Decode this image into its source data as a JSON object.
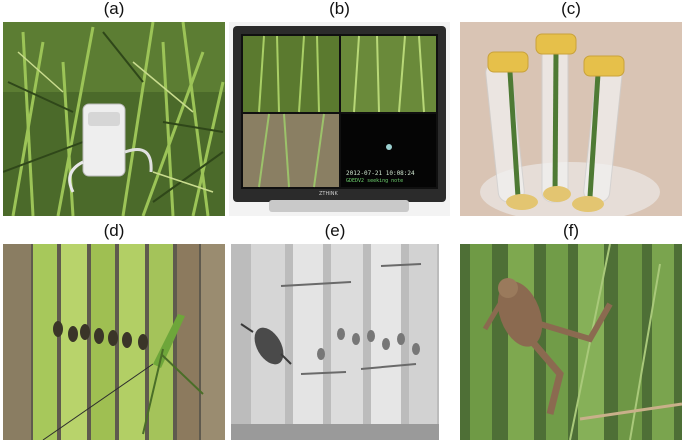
{
  "panels": [
    {
      "label": "(a)",
      "content": "camera-in-rice-field"
    },
    {
      "label": "(b)",
      "content": "monitor-four-view"
    },
    {
      "label": "(c)",
      "content": "stems-in-tubes"
    },
    {
      "label": "(d)",
      "content": "planthoppers-and-grasshopper"
    },
    {
      "label": "(e)",
      "content": "infrared-beetle-view"
    },
    {
      "label": "(f)",
      "content": "frog-on-stems"
    }
  ],
  "monitor": {
    "timestamp": "2012-07-21  10:08:24",
    "subline": "GDEDV2 seeking note",
    "brand": "ZTHINK"
  },
  "colors": {
    "leaf_dark": "#3d5a22",
    "leaf_light": "#8fb84a",
    "stem": "#7ea83a",
    "ir_bg": "#bcbcbc",
    "cap_yellow": "#e6c04a"
  }
}
